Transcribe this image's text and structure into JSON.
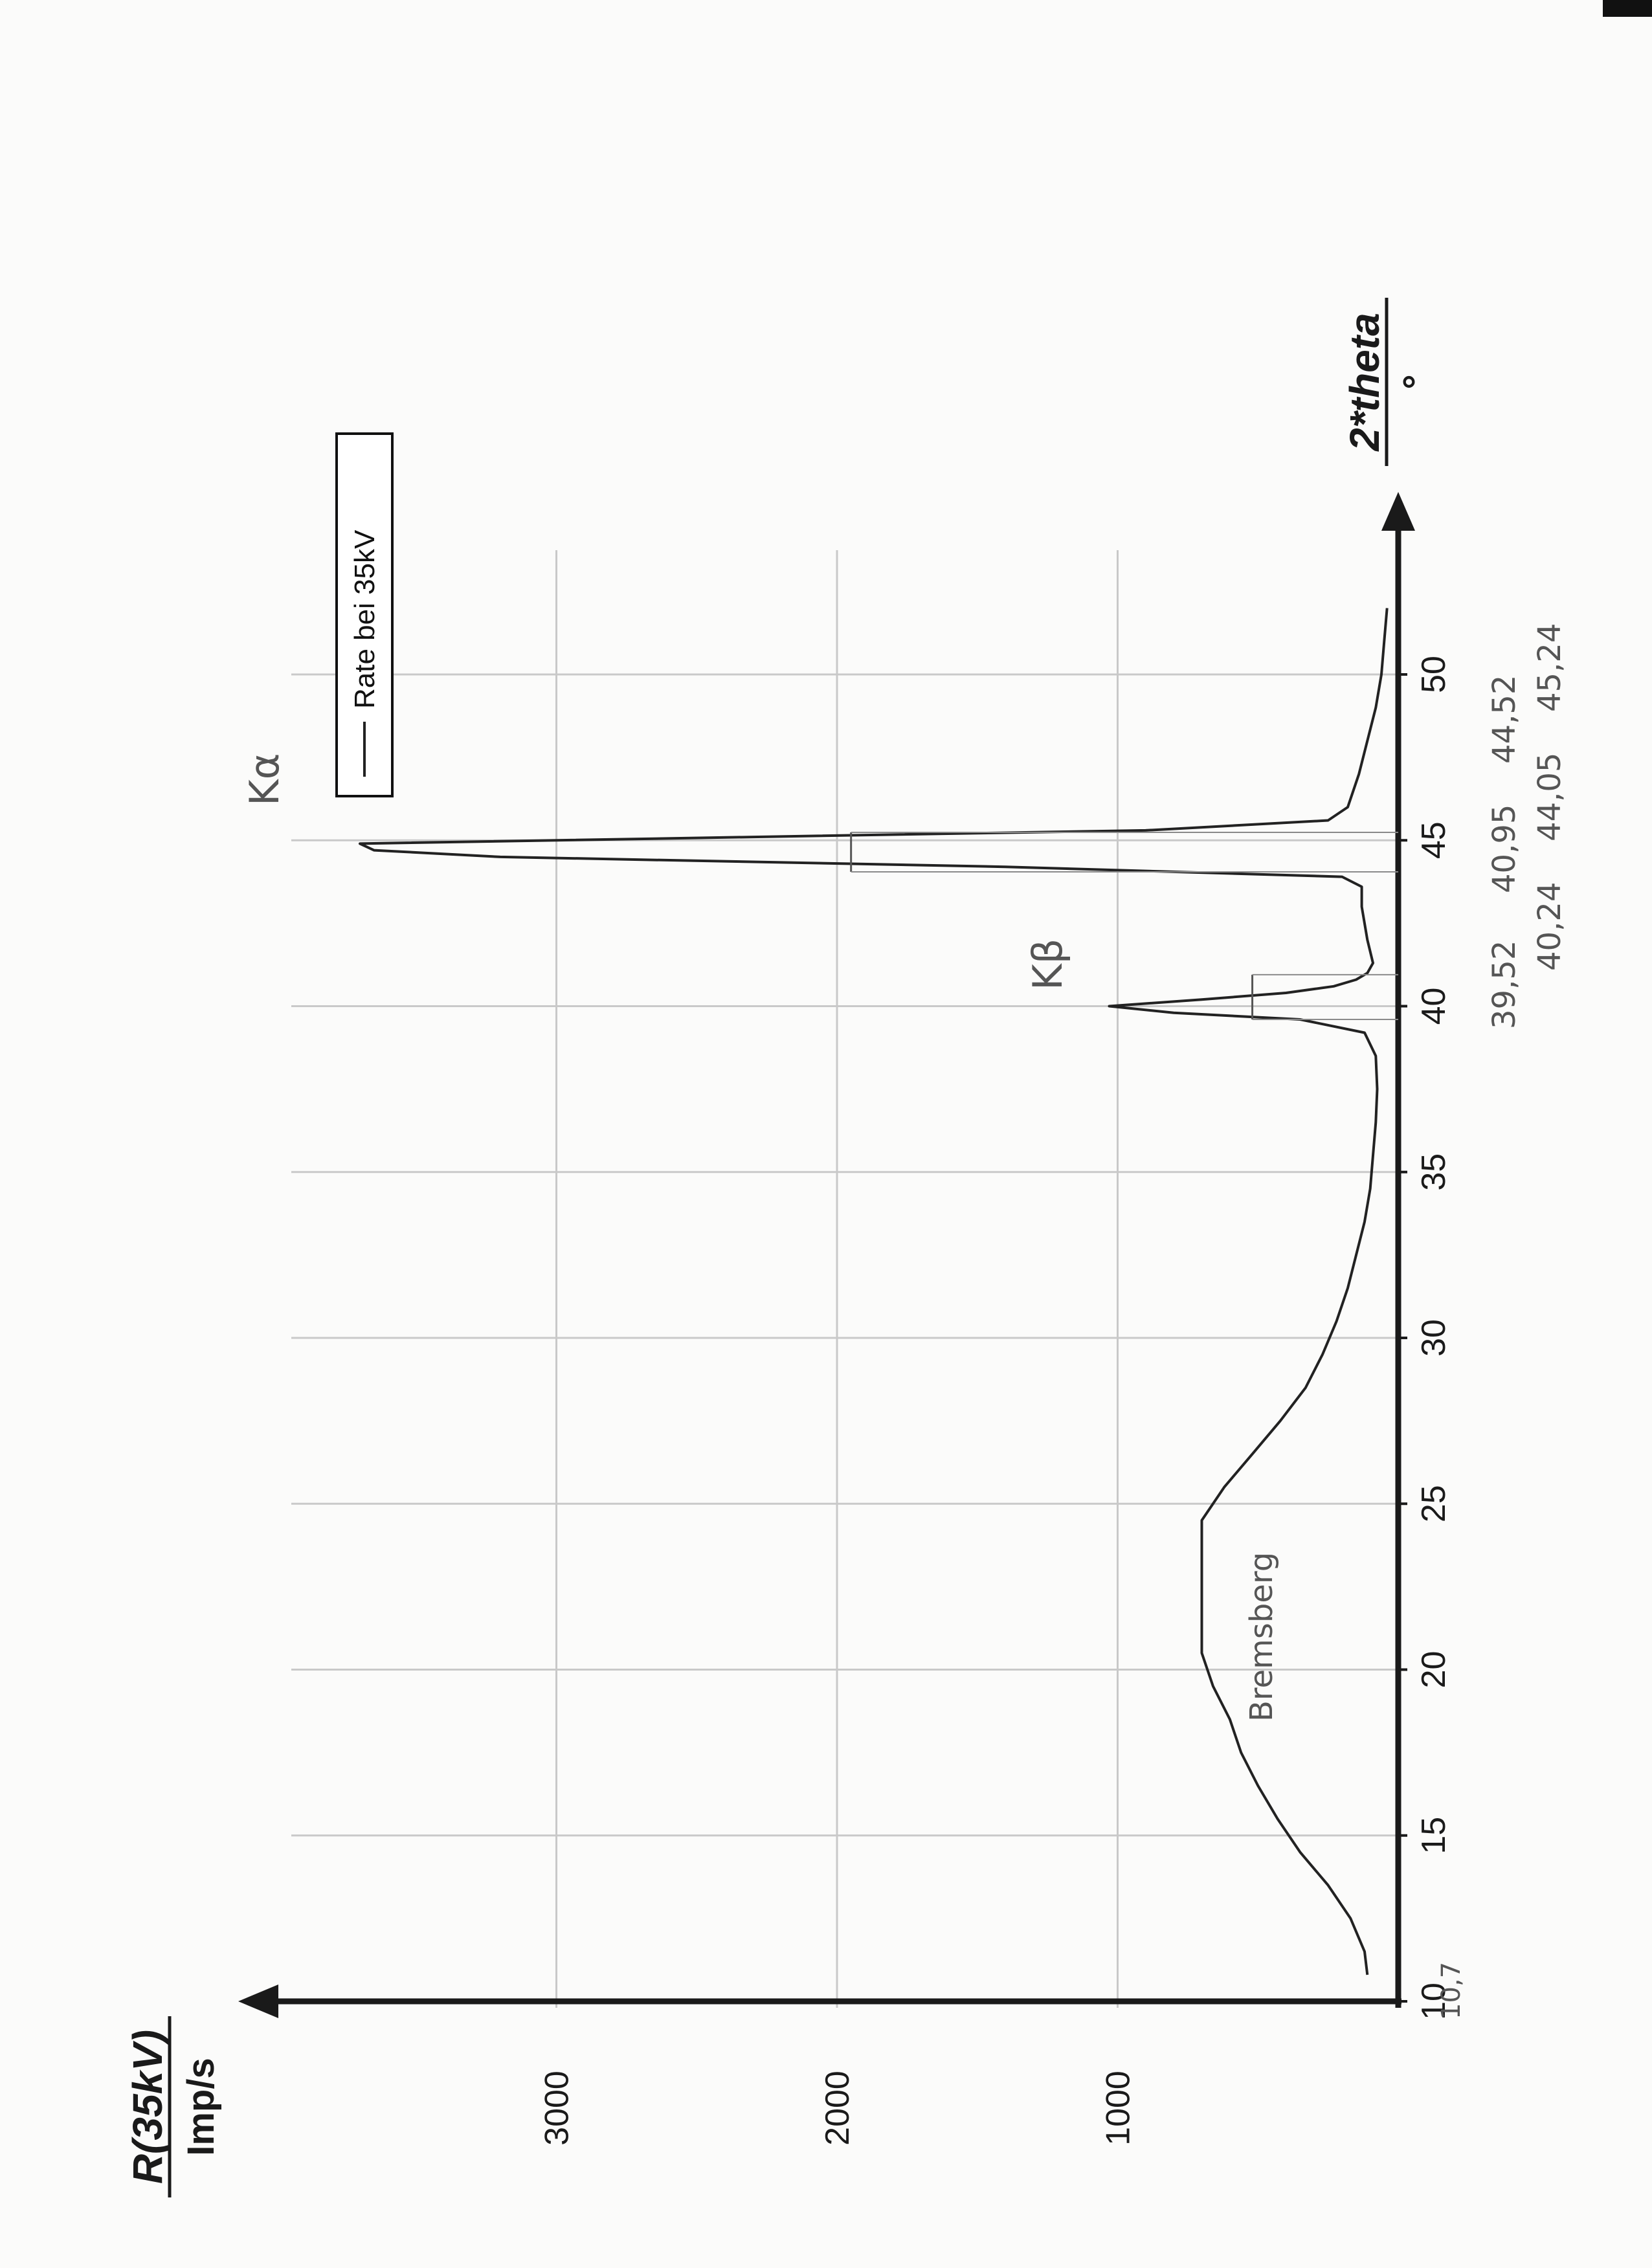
{
  "page_corner_mark": "",
  "chart_data": {
    "type": "line",
    "orientation": "rotated-90-ccw",
    "xlabel": "2*theta",
    "xunit": "°",
    "ylabel": "R(35kV)",
    "yunit": "Imp/s",
    "xlim": [
      8,
      52
    ],
    "ylim": [
      0,
      3900
    ],
    "x_ticks": [
      "10",
      "15",
      "20",
      "25",
      "30",
      "35",
      "40",
      "45",
      "50"
    ],
    "y_ticks": [
      "1000",
      "2000",
      "3000"
    ],
    "grid": true,
    "legend": {
      "placement": "top-right",
      "entries": [
        "Rate bei 35kV"
      ]
    },
    "series": [
      {
        "name": "Rate bei 35kV",
        "color": "#222222",
        "x": [
          10.8,
          11.5,
          12.5,
          13.5,
          14.5,
          15.5,
          16.5,
          17.5,
          18.5,
          19.5,
          20.5,
          21.5,
          22.5,
          23.5,
          24.5,
          25.5,
          26.5,
          27.5,
          28.5,
          29.5,
          30.5,
          31.5,
          32.5,
          33.5,
          34.5,
          35.5,
          36.5,
          37.5,
          38.5,
          39.2,
          39.6,
          39.8,
          40.0,
          40.2,
          40.4,
          40.6,
          40.8,
          41.0,
          41.3,
          42.0,
          43.0,
          43.6,
          43.9,
          44.2,
          44.5,
          44.7,
          44.9,
          45.1,
          45.3,
          45.6,
          46.0,
          47.0,
          48.0,
          49.0,
          50.0,
          51.0,
          52.0
        ],
        "values": [
          110,
          120,
          170,
          250,
          350,
          430,
          500,
          560,
          600,
          660,
          700,
          700,
          700,
          700,
          700,
          620,
          520,
          420,
          330,
          270,
          220,
          180,
          150,
          120,
          100,
          90,
          80,
          75,
          80,
          120,
          350,
          800,
          1030,
          700,
          400,
          230,
          150,
          110,
          90,
          110,
          130,
          130,
          200,
          1400,
          3200,
          3650,
          3700,
          2300,
          900,
          250,
          180,
          140,
          110,
          80,
          60,
          50,
          40
        ]
      }
    ],
    "annotations": [
      {
        "text": "Kα",
        "x": 45,
        "role": "peak-label"
      },
      {
        "text": "Kβ",
        "x": 40.2,
        "role": "peak-label"
      },
      {
        "text": "Bremsberg",
        "x": 19,
        "role": "region-label"
      },
      {
        "text": "39,52",
        "role": "measurement"
      },
      {
        "text": "40,95",
        "role": "measurement"
      },
      {
        "text": "44,52",
        "role": "measurement"
      },
      {
        "text": "40,24",
        "role": "measurement"
      },
      {
        "text": "44,05",
        "role": "measurement"
      },
      {
        "text": "45,24",
        "role": "measurement"
      },
      {
        "text": "10,7",
        "role": "margin-note"
      }
    ]
  }
}
